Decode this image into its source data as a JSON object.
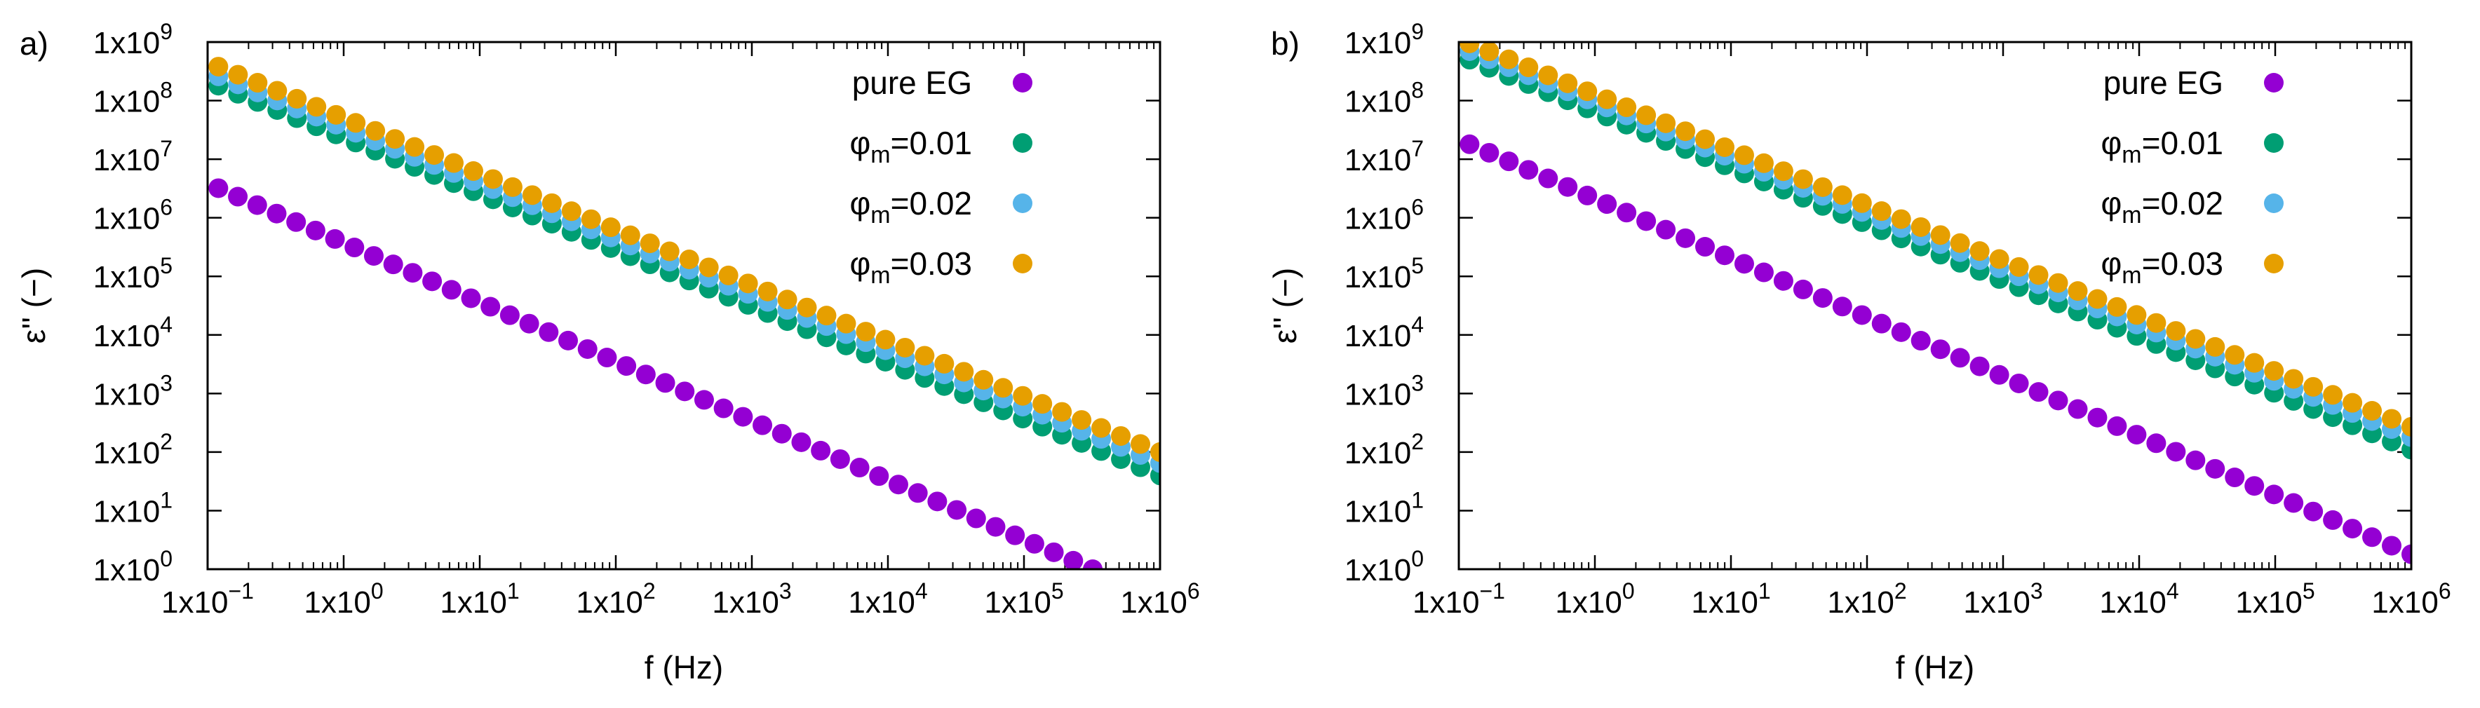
{
  "colors": {
    "pure_eg": "#9400d3",
    "phi_001": "#009e73",
    "phi_002": "#56b4e9",
    "phi_003": "#e69f00",
    "axis": "#000000"
  },
  "chart_data": [
    {
      "panel_label": "a)",
      "type": "scatter",
      "scale": "log-log",
      "xlabel": "f (Hz)",
      "ylabel": "ε'' (−)",
      "xlim": [
        0.1,
        1000000
      ],
      "ylim": [
        1,
        1000000000
      ],
      "xticks": [
        {
          "base": "1x10",
          "exp": "−1"
        },
        {
          "base": "1x10",
          "exp": "0"
        },
        {
          "base": "1x10",
          "exp": "1"
        },
        {
          "base": "1x10",
          "exp": "2"
        },
        {
          "base": "1x10",
          "exp": "3"
        },
        {
          "base": "1x10",
          "exp": "4"
        },
        {
          "base": "1x10",
          "exp": "5"
        },
        {
          "base": "1x10",
          "exp": "6"
        }
      ],
      "yticks": [
        {
          "base": "1x10",
          "exp": "0"
        },
        {
          "base": "1x10",
          "exp": "1"
        },
        {
          "base": "1x10",
          "exp": "2"
        },
        {
          "base": "1x10",
          "exp": "3"
        },
        {
          "base": "1x10",
          "exp": "4"
        },
        {
          "base": "1x10",
          "exp": "5"
        },
        {
          "base": "1x10",
          "exp": "6"
        },
        {
          "base": "1x10",
          "exp": "7"
        },
        {
          "base": "1x10",
          "exp": "8"
        },
        {
          "base": "1x10",
          "exp": "9"
        }
      ],
      "legend_position": "top-right",
      "series": [
        {
          "name": "pure EG",
          "label": {
            "main": "pure EG",
            "sub": ""
          },
          "color_key": "pure_eg",
          "f_start": 0.12,
          "f_end": 320000,
          "y_start": 3200000,
          "y_end": 1.0
        },
        {
          "name": "φm=0.01",
          "label": {
            "main": "φ",
            "sub": "m",
            "tail": "=0.01"
          },
          "color_key": "phi_001",
          "f_start": 0.12,
          "f_end": 1000000,
          "y_start": 180000000,
          "y_end": 40
        },
        {
          "name": "φm=0.02",
          "label": {
            "main": "φ",
            "sub": "m",
            "tail": "=0.02"
          },
          "color_key": "phi_002",
          "f_start": 0.12,
          "f_end": 1000000,
          "y_start": 260000000,
          "y_end": 65
        },
        {
          "name": "φm=0.03",
          "label": {
            "main": "φ",
            "sub": "m",
            "tail": "=0.03"
          },
          "color_key": "phi_003",
          "f_start": 0.12,
          "f_end": 1000000,
          "y_start": 380000000,
          "y_end": 100
        }
      ],
      "points_per_decade": 7
    },
    {
      "panel_label": "b)",
      "type": "scatter",
      "scale": "log-log",
      "xlabel": "f (Hz)",
      "ylabel": "ε'' (−)",
      "xlim": [
        0.1,
        1000000
      ],
      "ylim": [
        1,
        1000000000
      ],
      "xticks": [
        {
          "base": "1x10",
          "exp": "−1"
        },
        {
          "base": "1x10",
          "exp": "0"
        },
        {
          "base": "1x10",
          "exp": "1"
        },
        {
          "base": "1x10",
          "exp": "2"
        },
        {
          "base": "1x10",
          "exp": "3"
        },
        {
          "base": "1x10",
          "exp": "4"
        },
        {
          "base": "1x10",
          "exp": "5"
        },
        {
          "base": "1x10",
          "exp": "6"
        }
      ],
      "yticks": [
        {
          "base": "1x10",
          "exp": "0"
        },
        {
          "base": "1x10",
          "exp": "1"
        },
        {
          "base": "1x10",
          "exp": "2"
        },
        {
          "base": "1x10",
          "exp": "3"
        },
        {
          "base": "1x10",
          "exp": "4"
        },
        {
          "base": "1x10",
          "exp": "5"
        },
        {
          "base": "1x10",
          "exp": "6"
        },
        {
          "base": "1x10",
          "exp": "7"
        },
        {
          "base": "1x10",
          "exp": "8"
        },
        {
          "base": "1x10",
          "exp": "9"
        }
      ],
      "legend_position": "top-right",
      "series": [
        {
          "name": "pure EG",
          "label": {
            "main": "pure EG",
            "sub": ""
          },
          "color_key": "pure_eg",
          "f_start": 0.12,
          "f_end": 1000000,
          "y_start": 18000000,
          "y_end": 1.8
        },
        {
          "name": "φm=0.01",
          "label": {
            "main": "φ",
            "sub": "m",
            "tail": "=0.01"
          },
          "color_key": "phi_001",
          "f_start": 0.12,
          "f_end": 1000000,
          "y_start": 500000000,
          "y_end": 110
        },
        {
          "name": "φm=0.02",
          "label": {
            "main": "φ",
            "sub": "m",
            "tail": "=0.02"
          },
          "color_key": "phi_002",
          "f_start": 0.12,
          "f_end": 1000000,
          "y_start": 700000000,
          "y_end": 180
        },
        {
          "name": "φm=0.03",
          "label": {
            "main": "φ",
            "sub": "m",
            "tail": "=0.03"
          },
          "color_key": "phi_003",
          "f_start": 0.12,
          "f_end": 1000000,
          "y_start": 950000000,
          "y_end": 270
        }
      ],
      "points_per_decade": 7
    }
  ]
}
